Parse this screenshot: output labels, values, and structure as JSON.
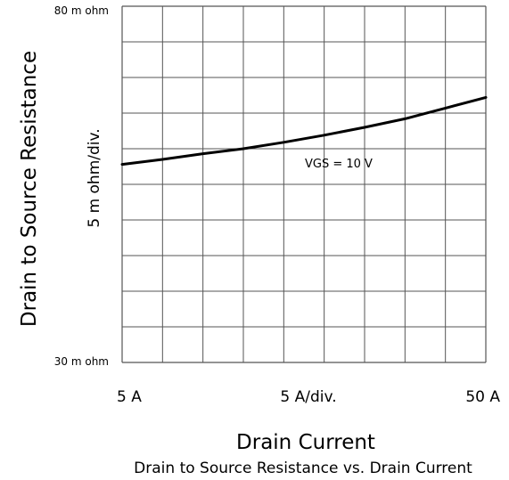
{
  "chart_data": {
    "type": "line",
    "title": "Drain to Source Resistance vs. Drain Current",
    "xlabel": "Drain Current",
    "ylabel": "Drain to Source Resistance",
    "x_scale_label": "5  A/div.",
    "y_scale_label": "5 m ohm/div.",
    "x_tick_labels": {
      "min": "5  A",
      "max": "50  A"
    },
    "y_tick_labels": {
      "max": "80 m ohm",
      "min": "30 m ohm"
    },
    "xlim": [
      5,
      50
    ],
    "ylim": [
      30,
      80
    ],
    "grid": true,
    "x_divisions": 9,
    "y_divisions": 10,
    "series": [
      {
        "name": "VGS = 10 V",
        "x": [
          5,
          10,
          15,
          20,
          25,
          30,
          35,
          40,
          45,
          50
        ],
        "y": [
          57.8,
          58.5,
          59.3,
          60.0,
          60.9,
          61.9,
          63.0,
          64.2,
          65.7,
          67.2
        ]
      }
    ],
    "annotation": "VGS = 10 V",
    "line_color": "#000000",
    "grid_color": "#555555"
  }
}
